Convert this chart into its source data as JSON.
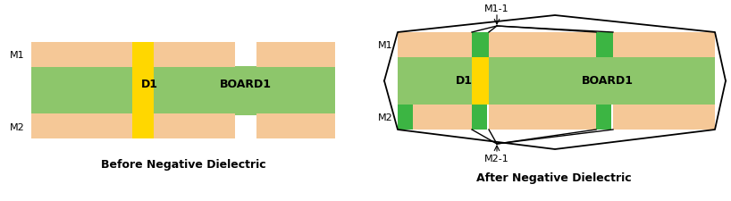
{
  "bg_color": "#ffffff",
  "copper_color": "#F5C897",
  "dielectric_color": "#8DC66B",
  "pad_color": "#FFD700",
  "green_pad_color": "#3CB543",
  "text_color": "#000000",
  "before_title": "Before Negative Dielectric",
  "after_title": "After Negative Dielectric",
  "m1_label": "M1",
  "m2_label": "M2",
  "m11_label": "M1-1",
  "m21_label": "M2-1",
  "d1_label": "D1",
  "board_label": "BOARD1"
}
